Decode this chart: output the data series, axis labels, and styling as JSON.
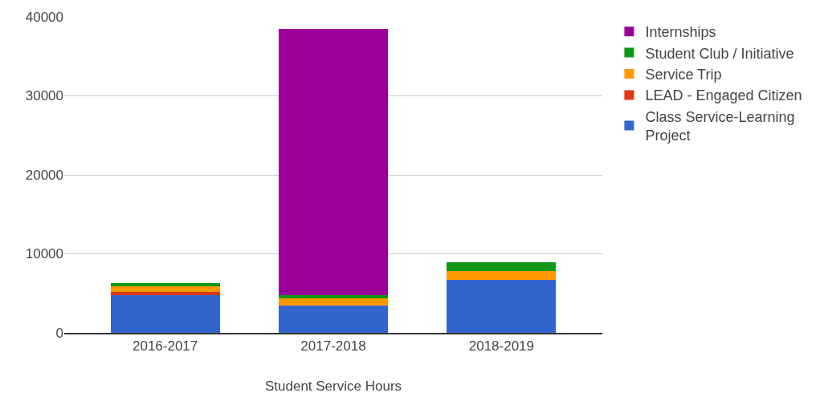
{
  "chart_data": {
    "type": "bar",
    "stacked": true,
    "xlabel": "Student Service Hours",
    "categories": [
      "2016-2017",
      "2017-2018",
      "2018-2019"
    ],
    "series": [
      {
        "name": "Class Service-Learning Project",
        "color": "#3366cc",
        "values": [
          4800,
          3500,
          6700
        ]
      },
      {
        "name": "LEAD - Engaged Citizen",
        "color": "#dc3912",
        "values": [
          400,
          0,
          0
        ]
      },
      {
        "name": "Service Trip",
        "color": "#ff9900",
        "values": [
          700,
          900,
          1100
        ]
      },
      {
        "name": "Student Club / Initiative",
        "color": "#109618",
        "values": [
          400,
          400,
          1100
        ]
      },
      {
        "name": "Internships",
        "color": "#990099",
        "values": [
          0,
          33700,
          0
        ]
      }
    ],
    "ylim": [
      0,
      40000
    ],
    "yticks": [
      0,
      10000,
      20000,
      30000,
      40000
    ],
    "grid": "y",
    "legend": "top right"
  }
}
